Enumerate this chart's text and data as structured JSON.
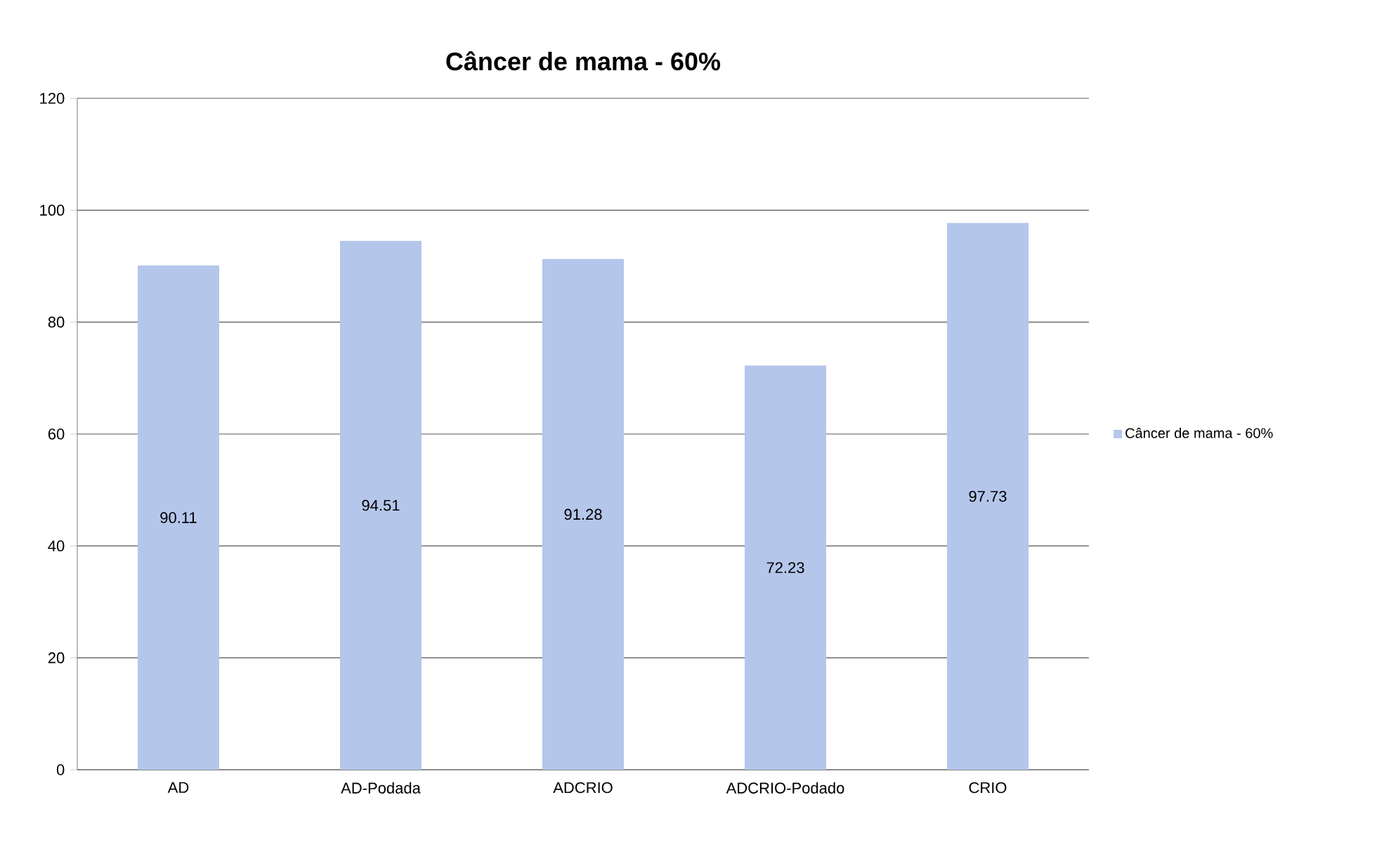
{
  "chart_data": {
    "type": "bar",
    "title": "Câncer de mama - 60%",
    "categories": [
      "AD",
      "AD-Podada",
      "ADCRIO",
      "ADCRIO-Podado",
      "CRIO"
    ],
    "series": [
      {
        "name": "Câncer de mama - 60%",
        "color": "#b4c6ea",
        "values": [
          90.11,
          94.51,
          91.28,
          72.23,
          97.73
        ]
      }
    ],
    "ylim": [
      0,
      120
    ],
    "yticks": [
      0,
      20,
      40,
      60,
      80,
      100,
      120
    ],
    "grid": "y",
    "legend": "right",
    "data_labels": true
  }
}
